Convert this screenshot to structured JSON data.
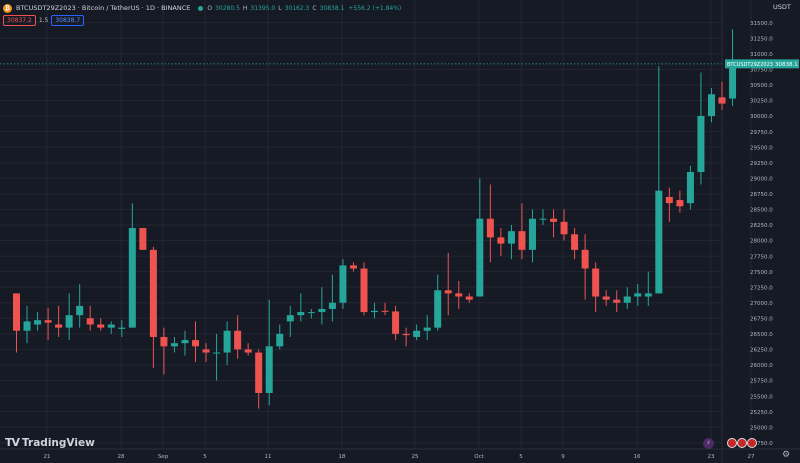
{
  "header": {
    "symbol_icon": "bitcoin-icon",
    "title": "BTCUSDT29Z2023 · Bitcoin / TetherUS · 1D · BINANCE",
    "open_label": "O",
    "open_value": "30280.5",
    "high_label": "H",
    "high_value": "31395.0",
    "low_label": "L",
    "low_value": "30162.3",
    "close_label": "C",
    "close_value": "30838.1",
    "change": "+556.2 (+1.84%)"
  },
  "trade": {
    "sell_price": "30837.2",
    "spread": "1.5",
    "buy_price": "30838.7"
  },
  "currency_label": "USDT",
  "price_tag": {
    "symbol": "BTCUSDT29Z2023",
    "price": "30838.1"
  },
  "watermark": "TradingView",
  "colors": {
    "up": "#26a69a",
    "down": "#ef5350",
    "background": "#161a25",
    "grid": "#232632"
  },
  "icons": {
    "events": "calendar-event-icon",
    "flags": "us-flag-icon",
    "settings": "gear-icon"
  },
  "chart_data": {
    "type": "candlestick",
    "y_ticks": [
      "24750.0",
      "25000.0",
      "25250.0",
      "25500.0",
      "25750.0",
      "26000.0",
      "26250.0",
      "26500.0",
      "26750.0",
      "27000.0",
      "27250.0",
      "27500.0",
      "27750.0",
      "28000.0",
      "28250.0",
      "28500.0",
      "28750.0",
      "29000.0",
      "29250.0",
      "29500.0",
      "29750.0",
      "30000.0",
      "30250.0",
      "30500.0",
      "30750.0",
      "31000.0",
      "31250.0",
      "31500.0"
    ],
    "y_min": 24650,
    "y_max": 31800,
    "x_tick_labels": [
      "21",
      "28",
      "Sep",
      "5",
      "11",
      "18",
      "25",
      "Oct",
      "5",
      "9",
      "16",
      "23",
      "27"
    ],
    "candles": [
      {
        "o": 27150,
        "h": 27150,
        "l": 26200,
        "c": 26550
      },
      {
        "o": 26550,
        "h": 26950,
        "l": 26350,
        "c": 26700
      },
      {
        "o": 26650,
        "h": 26850,
        "l": 26550,
        "c": 26720
      },
      {
        "o": 26720,
        "h": 26920,
        "l": 26400,
        "c": 26680
      },
      {
        "o": 26650,
        "h": 26950,
        "l": 26450,
        "c": 26600
      },
      {
        "o": 26600,
        "h": 27150,
        "l": 26400,
        "c": 26800
      },
      {
        "o": 26800,
        "h": 27300,
        "l": 26600,
        "c": 26950
      },
      {
        "o": 26750,
        "h": 26950,
        "l": 26550,
        "c": 26650
      },
      {
        "o": 26650,
        "h": 26750,
        "l": 26550,
        "c": 26600
      },
      {
        "o": 26600,
        "h": 26700,
        "l": 26500,
        "c": 26650
      },
      {
        "o": 26580,
        "h": 26720,
        "l": 26450,
        "c": 26600
      },
      {
        "o": 26600,
        "h": 28600,
        "l": 26600,
        "c": 28200
      },
      {
        "o": 28200,
        "h": 28200,
        "l": 27900,
        "c": 27850
      },
      {
        "o": 27850,
        "h": 27900,
        "l": 25950,
        "c": 26450
      },
      {
        "o": 26450,
        "h": 26600,
        "l": 25850,
        "c": 26300
      },
      {
        "o": 26300,
        "h": 26450,
        "l": 26200,
        "c": 26350
      },
      {
        "o": 26350,
        "h": 26550,
        "l": 26150,
        "c": 26400
      },
      {
        "o": 26400,
        "h": 26700,
        "l": 26050,
        "c": 26300
      },
      {
        "o": 26250,
        "h": 26350,
        "l": 26050,
        "c": 26200
      },
      {
        "o": 26200,
        "h": 26500,
        "l": 25750,
        "c": 26200
      },
      {
        "o": 26200,
        "h": 26700,
        "l": 26000,
        "c": 26550
      },
      {
        "o": 26550,
        "h": 26800,
        "l": 26100,
        "c": 26250
      },
      {
        "o": 26250,
        "h": 26350,
        "l": 26150,
        "c": 26200
      },
      {
        "o": 26200,
        "h": 26250,
        "l": 25300,
        "c": 25550
      },
      {
        "o": 25550,
        "h": 27050,
        "l": 25350,
        "c": 26300
      },
      {
        "o": 26300,
        "h": 26650,
        "l": 26250,
        "c": 26500
      },
      {
        "o": 26700,
        "h": 26950,
        "l": 26450,
        "c": 26800
      },
      {
        "o": 26800,
        "h": 27150,
        "l": 26700,
        "c": 26850
      },
      {
        "o": 26850,
        "h": 26900,
        "l": 26750,
        "c": 26850
      },
      {
        "o": 26850,
        "h": 27250,
        "l": 26650,
        "c": 26900
      },
      {
        "o": 26900,
        "h": 27450,
        "l": 26700,
        "c": 27000
      },
      {
        "o": 27000,
        "h": 27700,
        "l": 26900,
        "c": 27600
      },
      {
        "o": 27600,
        "h": 27650,
        "l": 27500,
        "c": 27550
      },
      {
        "o": 27550,
        "h": 27650,
        "l": 26800,
        "c": 26850
      },
      {
        "o": 26850,
        "h": 27000,
        "l": 26750,
        "c": 26870
      },
      {
        "o": 26870,
        "h": 27000,
        "l": 26800,
        "c": 26860
      },
      {
        "o": 26860,
        "h": 26950,
        "l": 26400,
        "c": 26500
      },
      {
        "o": 26500,
        "h": 26600,
        "l": 26300,
        "c": 26480
      },
      {
        "o": 26450,
        "h": 26650,
        "l": 26400,
        "c": 26550
      },
      {
        "o": 26550,
        "h": 26800,
        "l": 26400,
        "c": 26600
      },
      {
        "o": 26600,
        "h": 27450,
        "l": 26550,
        "c": 27200
      },
      {
        "o": 27200,
        "h": 27800,
        "l": 26800,
        "c": 27150
      },
      {
        "o": 27150,
        "h": 27350,
        "l": 26900,
        "c": 27100
      },
      {
        "o": 27100,
        "h": 27150,
        "l": 27000,
        "c": 27050
      },
      {
        "o": 27100,
        "h": 29000,
        "l": 27100,
        "c": 28350
      },
      {
        "o": 28350,
        "h": 28900,
        "l": 27650,
        "c": 28050
      },
      {
        "o": 28050,
        "h": 28200,
        "l": 27750,
        "c": 27950
      },
      {
        "o": 27950,
        "h": 28250,
        "l": 27700,
        "c": 28150
      },
      {
        "o": 28150,
        "h": 28600,
        "l": 27700,
        "c": 27850
      },
      {
        "o": 27850,
        "h": 28500,
        "l": 27650,
        "c": 28350
      },
      {
        "o": 28350,
        "h": 28500,
        "l": 28250,
        "c": 28350
      },
      {
        "o": 28350,
        "h": 28500,
        "l": 28050,
        "c": 28300
      },
      {
        "o": 28300,
        "h": 28500,
        "l": 28000,
        "c": 28100
      },
      {
        "o": 28100,
        "h": 28200,
        "l": 27700,
        "c": 27850
      },
      {
        "o": 27850,
        "h": 28100,
        "l": 27050,
        "c": 27550
      },
      {
        "o": 27550,
        "h": 27650,
        "l": 26850,
        "c": 27100
      },
      {
        "o": 27100,
        "h": 27200,
        "l": 26950,
        "c": 27050
      },
      {
        "o": 27050,
        "h": 27200,
        "l": 26850,
        "c": 27000
      },
      {
        "o": 27000,
        "h": 27250,
        "l": 26900,
        "c": 27100
      },
      {
        "o": 27100,
        "h": 27300,
        "l": 26950,
        "c": 27150
      },
      {
        "o": 27100,
        "h": 27500,
        "l": 26950,
        "c": 27150
      },
      {
        "o": 27150,
        "h": 30800,
        "l": 27150,
        "c": 28800
      },
      {
        "o": 28700,
        "h": 28850,
        "l": 28300,
        "c": 28600
      },
      {
        "o": 28650,
        "h": 28800,
        "l": 28450,
        "c": 28550
      },
      {
        "o": 28600,
        "h": 29200,
        "l": 28500,
        "c": 29100
      },
      {
        "o": 29100,
        "h": 30700,
        "l": 28900,
        "c": 30000
      },
      {
        "o": 30000,
        "h": 30450,
        "l": 29900,
        "c": 30350
      },
      {
        "o": 30300,
        "h": 30550,
        "l": 30100,
        "c": 30200
      },
      {
        "o": 30280.5,
        "h": 31395,
        "l": 30162.3,
        "c": 30838.1
      }
    ]
  }
}
